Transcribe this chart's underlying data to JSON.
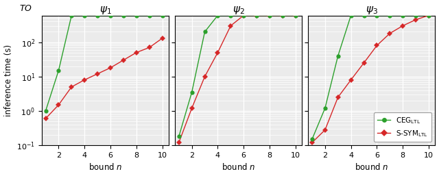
{
  "psi1": {
    "title": "$\\psi_1$",
    "green_x": [
      1,
      2,
      3,
      4,
      5,
      6,
      7,
      8,
      9,
      10
    ],
    "green_y": [
      1.0,
      15.0,
      600,
      600,
      600,
      600,
      600,
      600,
      600,
      600
    ],
    "green_real_n": 2,
    "red_x": [
      1,
      2,
      3,
      4,
      5,
      6,
      7,
      8,
      9,
      10
    ],
    "red_y": [
      0.6,
      1.5,
      5.0,
      8.0,
      12.0,
      18.0,
      30.0,
      50.0,
      70.0,
      130.0
    ]
  },
  "psi2": {
    "title": "$\\psi_2$",
    "green_x": [
      1,
      2,
      3,
      4,
      5,
      6,
      7,
      8,
      9,
      10
    ],
    "green_y": [
      0.18,
      3.5,
      200.0,
      600,
      600,
      600,
      600,
      600,
      600,
      600
    ],
    "green_real_n": 3,
    "red_x": [
      1,
      2,
      3,
      4,
      5,
      6,
      7,
      8,
      9,
      10
    ],
    "red_y": [
      0.12,
      1.2,
      10.0,
      50.0,
      300.0,
      600,
      600,
      600,
      600,
      600
    ]
  },
  "psi3": {
    "title": "$\\psi_3$",
    "green_x": [
      1,
      2,
      3,
      4,
      5,
      6,
      7,
      8,
      9,
      10
    ],
    "green_y": [
      0.15,
      1.2,
      40.0,
      600,
      600,
      600,
      600,
      600,
      600,
      600
    ],
    "green_real_n": 3,
    "red_x": [
      1,
      2,
      3,
      4,
      5,
      6,
      7,
      8,
      9,
      10
    ],
    "red_y": [
      0.12,
      0.28,
      2.5,
      8.0,
      25.0,
      80.0,
      180.0,
      300.0,
      450.0,
      600
    ]
  },
  "TO_clip": 600,
  "ylim_low": 0.1,
  "ylim_high": 600,
  "green_color": "#2ca02c",
  "red_color": "#d62728",
  "bg_color": "#ebebeb",
  "ylabel": "inference time (s)",
  "xlabel": "bound $n$",
  "legend_green": "CEG$_{\\mathrm{LTL}}$",
  "legend_red": "S-SYM$_{\\mathrm{LTL}}$"
}
